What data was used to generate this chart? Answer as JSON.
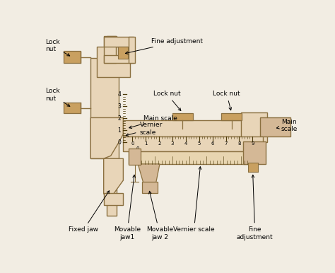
{
  "bg_color": "#f2ede3",
  "body_color": "#d4b896",
  "body_color2": "#e8d5b8",
  "body_edge": "#8b7040",
  "dark_edge": "#4a3808",
  "nut_color": "#c9a060",
  "vernier_color": "#e8d5b0",
  "labels": {
    "fine_adj_top": "Fine adjustment",
    "main_scale_vert": "Main scale",
    "vernier_scale_vert": "Vernier\nscale",
    "lock_nut_top": "Lock\nnut",
    "lock_nut_mid": "Lock\nnut",
    "lock_nut_h1": "Lock nut",
    "lock_nut_h2": "Lock nut",
    "main_scale_horiz": "Main\nscale",
    "fixed_jaw": "Fixed jaw",
    "movable_jaw1": "Movable\njaw1",
    "movable_jaw2": "Movable\njaw 2",
    "vernier_scale_horiz": "Vernier scale",
    "fine_adj_bottom": "Fine\nadjustment"
  },
  "vert_ticks": [
    0,
    1,
    2,
    3,
    4
  ],
  "horiz_ticks": [
    0,
    1,
    2,
    3,
    4,
    5,
    6,
    7,
    8,
    9
  ]
}
